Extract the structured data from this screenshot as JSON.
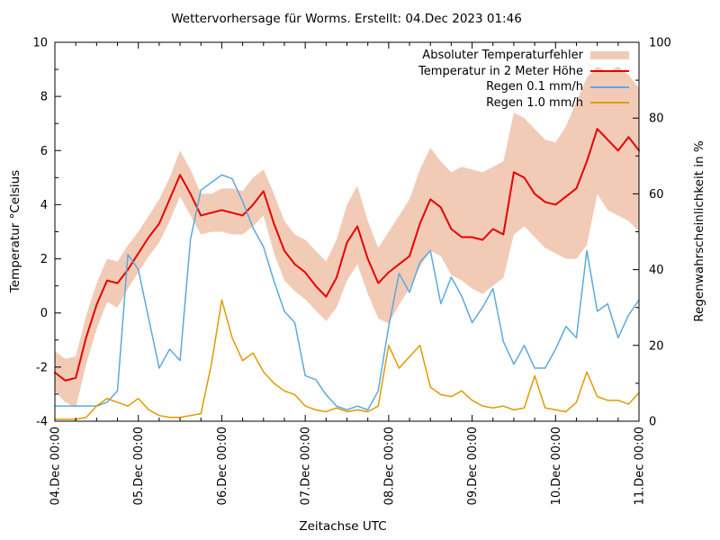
{
  "title": "Wettervorhersage für Worms. Erstellt: 04.Dec 2023 01:46",
  "axis_labels": {
    "left": "Temperatur °Celsius",
    "right": "Regenwahrscheinlichkeit in %",
    "bottom": "Zeitachse UTC"
  },
  "colors": {
    "band": "#f2cbb6",
    "temperature": "#e60000",
    "rain01": "#5ca9dd",
    "rain10": "#df9b00",
    "axis": "#000000",
    "background": "#ffffff"
  },
  "legend": {
    "items": [
      {
        "label": "Absoluter Temperaturfehler",
        "swatch": "area",
        "color": "#f2cbb6"
      },
      {
        "label": "Temperatur in 2 Meter Höhe",
        "swatch": "line",
        "color": "#e60000"
      },
      {
        "label": "Regen 0.1 mm/h",
        "swatch": "line",
        "color": "#5ca9dd"
      },
      {
        "label": "Regen 1.0 mm/h",
        "swatch": "line",
        "color": "#df9b00"
      }
    ]
  },
  "chart_data": {
    "type": "line",
    "title": "Wettervorhersage für Worms. Erstellt: 04.Dec 2023 01:46",
    "xlabel": "Zeitachse UTC",
    "x_hours_since_04dec_0000": [
      0,
      3,
      6,
      9,
      12,
      15,
      18,
      21,
      24,
      27,
      30,
      33,
      36,
      39,
      42,
      45,
      48,
      51,
      54,
      57,
      60,
      63,
      66,
      69,
      72,
      75,
      78,
      81,
      84,
      87,
      90,
      93,
      96,
      99,
      102,
      105,
      108,
      111,
      114,
      117,
      120,
      123,
      126,
      129,
      132,
      135,
      138,
      141,
      144,
      147,
      150,
      153,
      156,
      159,
      162,
      165,
      168
    ],
    "x_range_hours": [
      0,
      168
    ],
    "x_tick_hours": [
      0,
      24,
      48,
      72,
      96,
      120,
      144,
      168
    ],
    "x_tick_labels": [
      "04.Dec 00:00",
      "05.Dec 00:00",
      "06.Dec 00:00",
      "07.Dec 00:00",
      "08.Dec 00:00",
      "09.Dec 00:00",
      "10.Dec 00:00",
      "11.Dec 00:00"
    ],
    "x_minor_tick_step_hours": 6,
    "y_left": {
      "label": "Temperatur °Celsius",
      "range": [
        -4,
        10
      ],
      "ticks": [
        -4,
        -2,
        0,
        2,
        4,
        6,
        8,
        10
      ],
      "minor_ticks": [
        -3,
        -1,
        1,
        3,
        5,
        7,
        9
      ]
    },
    "y_right": {
      "label": "Regenwahrscheinlichkeit in %",
      "range": [
        0,
        100
      ],
      "ticks": [
        0,
        20,
        40,
        60,
        80,
        100
      ],
      "minor_ticks": [
        10,
        30,
        50,
        70,
        90
      ]
    },
    "grid": false,
    "legend_position": "top-right-inside",
    "series": [
      {
        "name": "Absoluter Temperaturfehler",
        "type": "band",
        "axis": "left",
        "color": "#f2cbb6",
        "upper": [
          -1.4,
          -1.7,
          -1.6,
          -0.1,
          1.1,
          2.0,
          1.9,
          2.5,
          3.0,
          3.6,
          4.2,
          5.0,
          6.0,
          5.3,
          4.4,
          4.4,
          4.6,
          4.6,
          4.5,
          5.0,
          5.3,
          4.4,
          3.4,
          2.9,
          2.7,
          2.3,
          1.9,
          2.7,
          4.0,
          4.7,
          3.4,
          2.4,
          3.0,
          3.6,
          4.2,
          5.3,
          6.1,
          5.6,
          5.2,
          5.4,
          5.3,
          5.2,
          5.4,
          5.6,
          7.4,
          7.2,
          6.8,
          6.4,
          6.3,
          6.9,
          7.8,
          8.7,
          9.1,
          8.9,
          9.1,
          8.8,
          8.3
        ],
        "lower": [
          -2.9,
          -3.3,
          -3.5,
          -1.9,
          -0.6,
          0.4,
          0.2,
          0.9,
          1.5,
          2.1,
          2.6,
          3.4,
          4.3,
          3.6,
          2.9,
          3.0,
          3.0,
          2.9,
          2.9,
          3.2,
          3.6,
          2.2,
          1.2,
          0.8,
          0.5,
          0.1,
          -0.3,
          0.2,
          1.2,
          1.8,
          0.7,
          -0.2,
          -0.4,
          0.3,
          0.9,
          1.7,
          2.3,
          2.1,
          1.4,
          1.2,
          0.9,
          0.7,
          1.0,
          1.3,
          2.9,
          3.2,
          2.8,
          2.4,
          2.2,
          2.0,
          2.0,
          2.5,
          4.4,
          3.8,
          3.6,
          3.4,
          3.0
        ]
      },
      {
        "name": "Temperatur in 2 Meter Höhe",
        "type": "line",
        "axis": "left",
        "color": "#e60000",
        "width": 2,
        "values": [
          -2.2,
          -2.5,
          -2.4,
          -0.9,
          0.3,
          1.2,
          1.1,
          1.6,
          2.2,
          2.8,
          3.3,
          4.2,
          5.1,
          4.4,
          3.6,
          3.7,
          3.8,
          3.7,
          3.6,
          4.0,
          4.5,
          3.3,
          2.3,
          1.8,
          1.5,
          1.0,
          0.6,
          1.3,
          2.6,
          3.2,
          2.0,
          1.1,
          1.5,
          1.8,
          2.1,
          3.3,
          4.2,
          3.9,
          3.1,
          2.8,
          2.8,
          2.7,
          3.1,
          2.9,
          5.2,
          5.0,
          4.4,
          4.1,
          4.0,
          4.3,
          4.6,
          5.6,
          6.8,
          6.4,
          6.0,
          6.5,
          6.0
        ]
      },
      {
        "name": "Regen 0.1 mm/h",
        "type": "line",
        "axis": "right",
        "color": "#5ca9dd",
        "width": 1.5,
        "values": [
          4,
          4,
          4,
          4,
          4,
          5,
          8,
          44,
          40,
          27,
          14,
          19,
          16,
          48,
          61,
          63,
          65,
          64,
          58,
          51,
          46,
          37,
          29,
          26,
          12,
          11,
          7,
          4,
          3,
          4,
          3,
          8,
          25,
          39,
          34,
          42,
          45,
          31,
          38,
          33,
          26,
          30,
          35,
          21,
          15,
          20,
          14,
          14,
          19,
          25,
          22,
          45,
          29,
          31,
          22,
          28,
          32
        ]
      },
      {
        "name": "Regen 1.0 mm/h",
        "type": "line",
        "axis": "right",
        "color": "#df9b00",
        "width": 1.5,
        "values": [
          0.5,
          0.5,
          0.5,
          1,
          4,
          6,
          5,
          4,
          6,
          3,
          1.5,
          1,
          1,
          1.5,
          2,
          15,
          32,
          22,
          16,
          18,
          13,
          10,
          8,
          7,
          4,
          3,
          2.5,
          3.5,
          2.5,
          3,
          2.5,
          4,
          20,
          14,
          17,
          20,
          9,
          7,
          6.5,
          8,
          5.5,
          4,
          3.5,
          4,
          3,
          3.5,
          12,
          3.5,
          3,
          2.5,
          5,
          13,
          6.5,
          5.5,
          5.5,
          4.5,
          7.5
        ]
      }
    ]
  }
}
